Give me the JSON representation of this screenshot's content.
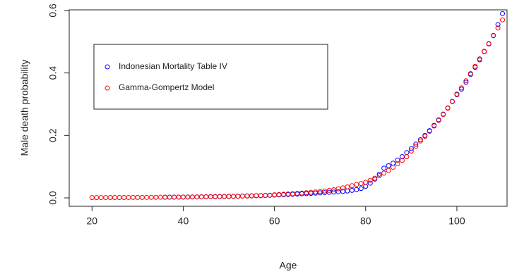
{
  "chart_data": {
    "type": "scatter",
    "x_label": "Age",
    "y_label": "Male death probability",
    "xlim": [
      15,
      111
    ],
    "ylim": [
      -0.027,
      0.602
    ],
    "xticks": [
      20,
      40,
      60,
      80,
      100
    ],
    "yticks": [
      {
        "value": 0,
        "label": "0.0"
      },
      0.2,
      0.4,
      0.6
    ],
    "legend": "top-left",
    "series": [
      {
        "name": "Indonesian Mortality Table IV",
        "color": "#0000ff",
        "x": [
          36,
          37,
          38,
          39,
          40,
          41,
          42,
          43,
          44,
          45,
          46,
          47,
          48,
          49,
          50,
          51,
          52,
          53,
          54,
          55,
          56,
          57,
          58,
          59,
          60,
          61,
          62,
          63,
          64,
          65,
          66,
          67,
          68,
          69,
          70,
          71,
          72,
          73,
          74,
          75,
          76,
          77,
          78,
          79,
          80,
          81,
          82,
          83,
          84,
          85,
          86,
          87,
          88,
          89,
          90,
          91,
          92,
          93,
          94,
          95,
          96,
          97,
          98,
          99,
          100,
          101,
          102,
          103,
          104,
          105,
          106,
          107,
          108,
          109,
          110
        ],
        "values": [
          0.0021,
          0.0022,
          0.0023,
          0.0024,
          0.0025,
          0.0026,
          0.0028,
          0.003,
          0.0032,
          0.0034,
          0.0037,
          0.004,
          0.0043,
          0.0046,
          0.0049,
          0.0052,
          0.0055,
          0.0058,
          0.0062,
          0.0066,
          0.007,
          0.0074,
          0.0079,
          0.0084,
          0.009,
          0.0096,
          0.0102,
          0.0108,
          0.0115,
          0.0122,
          0.0129,
          0.0136,
          0.0144,
          0.0152,
          0.016,
          0.0168,
          0.0177,
          0.0186,
          0.0196,
          0.0207,
          0.022,
          0.024,
          0.0265,
          0.03,
          0.037,
          0.047,
          0.06,
          0.076,
          0.095,
          0.103,
          0.111,
          0.121,
          0.132,
          0.145,
          0.158,
          0.172,
          0.186,
          0.2,
          0.215,
          0.232,
          0.25,
          0.268,
          0.288,
          0.309,
          0.332,
          0.348,
          0.37,
          0.395,
          0.418,
          0.442,
          0.468,
          0.493,
          0.52,
          0.555,
          0.59
        ]
      },
      {
        "name": "Gamma-Gompertz Model",
        "color": "#ff0000",
        "x": [
          20,
          21,
          22,
          23,
          24,
          25,
          26,
          27,
          28,
          29,
          30,
          31,
          32,
          33,
          34,
          35,
          36,
          37,
          38,
          39,
          40,
          41,
          42,
          43,
          44,
          45,
          46,
          47,
          48,
          49,
          50,
          51,
          52,
          53,
          54,
          55,
          56,
          57,
          58,
          59,
          60,
          61,
          62,
          63,
          64,
          65,
          66,
          67,
          68,
          69,
          70,
          71,
          72,
          73,
          74,
          75,
          76,
          77,
          78,
          79,
          80,
          81,
          82,
          83,
          84,
          85,
          86,
          87,
          88,
          89,
          90,
          91,
          92,
          93,
          94,
          95,
          96,
          97,
          98,
          99,
          100,
          101,
          102,
          103,
          104,
          105,
          106,
          107,
          108,
          109,
          110
        ],
        "values": [
          0.0009,
          0.0009,
          0.001,
          0.001,
          0.0011,
          0.0011,
          0.0012,
          0.0012,
          0.0013,
          0.0014,
          0.0014,
          0.0015,
          0.0016,
          0.0017,
          0.0018,
          0.0019,
          0.002,
          0.0021,
          0.0022,
          0.0024,
          0.0025,
          0.0027,
          0.0028,
          0.003,
          0.0032,
          0.0034,
          0.0036,
          0.0038,
          0.0041,
          0.0043,
          0.0046,
          0.0049,
          0.0052,
          0.0055,
          0.0059,
          0.0063,
          0.0067,
          0.0071,
          0.0076,
          0.0081,
          0.01,
          0.0107,
          0.0115,
          0.0124,
          0.0133,
          0.0143,
          0.0154,
          0.0165,
          0.0177,
          0.019,
          0.0204,
          0.022,
          0.024,
          0.026,
          0.029,
          0.032,
          0.035,
          0.039,
          0.043,
          0.046,
          0.05,
          0.056,
          0.063,
          0.071,
          0.079,
          0.088,
          0.098,
          0.109,
          0.12,
          0.132,
          0.15,
          0.165,
          0.182,
          0.197,
          0.213,
          0.23,
          0.248,
          0.267,
          0.287,
          0.308,
          0.33,
          0.352,
          0.375,
          0.398,
          0.421,
          0.445,
          0.469,
          0.494,
          0.519,
          0.544,
          0.57
        ]
      }
    ]
  }
}
